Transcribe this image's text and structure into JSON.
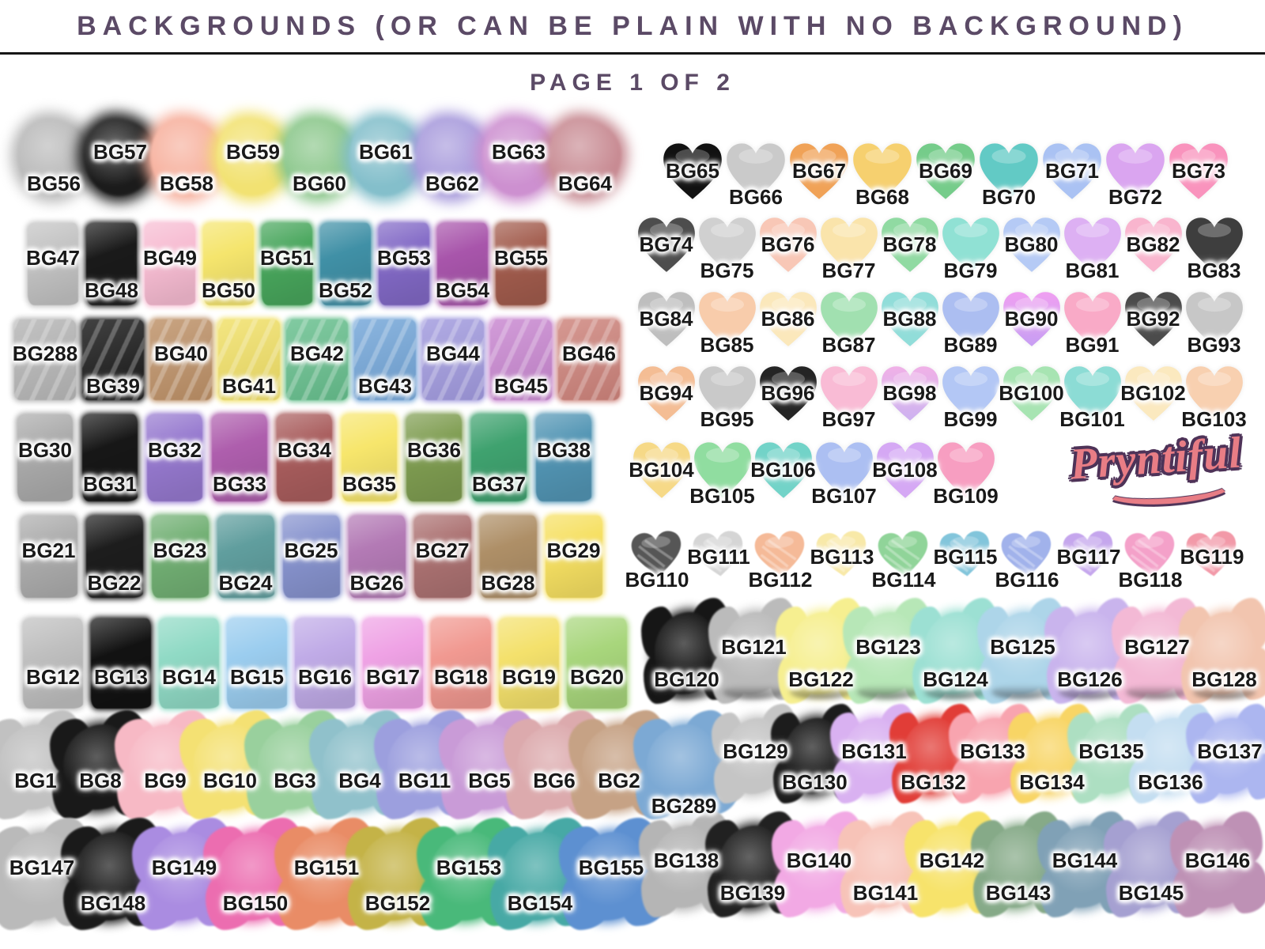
{
  "header": {
    "title": "BACKGROUNDS (OR CAN BE PLAIN WITH NO BACKGROUND)",
    "page_label": "PAGE 1 OF 2",
    "title_color": "#5b4a66"
  },
  "brand": {
    "name": "Pryntiful",
    "text_color": "#e87d85",
    "outline_color": "#4e3358"
  },
  "columns": {
    "left": {
      "rows": [
        {
          "name": "soft-blobs",
          "shape": "blob",
          "stagger": "du",
          "items": [
            {
              "id": "BG56",
              "color": "#b9b9b9"
            },
            {
              "id": "BG57",
              "color": "#1b1b1b"
            },
            {
              "id": "BG58",
              "color": "#f7b19e"
            },
            {
              "id": "BG59",
              "color": "#f2e272"
            },
            {
              "id": "BG60",
              "color": "#8bc78b"
            },
            {
              "id": "BG61",
              "color": "#84bfcb"
            },
            {
              "id": "BG62",
              "color": "#a89bdc"
            },
            {
              "id": "BG63",
              "color": "#cd90d0"
            },
            {
              "id": "BG64",
              "color": "#c88b93"
            }
          ]
        },
        {
          "name": "rect-row-47",
          "shape": "rect",
          "stagger": "ud",
          "items": [
            {
              "id": "BG47",
              "color": "#c3c3c3"
            },
            {
              "id": "BG48",
              "color": "#1a1a1a"
            },
            {
              "id": "BG49",
              "color": "#f7bcd2"
            },
            {
              "id": "BG50",
              "color": "#f5e56d"
            },
            {
              "id": "BG51",
              "color": "#48a65c"
            },
            {
              "id": "BG52",
              "color": "#4090a6"
            },
            {
              "id": "BG53",
              "color": "#8269c6"
            },
            {
              "id": "BG54",
              "color": "#a855ab"
            },
            {
              "id": "BG55",
              "color": "#a25c4d"
            }
          ]
        },
        {
          "name": "brush-row-39",
          "shape": "brush",
          "stagger": "ud",
          "items": [
            {
              "id": "BG288",
              "color": "#b5b5b5"
            },
            {
              "id": "BG39",
              "color": "#181818"
            },
            {
              "id": "BG40",
              "color": "#bd9066"
            },
            {
              "id": "BG41",
              "color": "#f1e066"
            },
            {
              "id": "BG42",
              "color": "#66bf8d"
            },
            {
              "id": "BG43",
              "color": "#72a5d8"
            },
            {
              "id": "BG44",
              "color": "#a099de"
            },
            {
              "id": "BG45",
              "color": "#c886d0"
            },
            {
              "id": "BG46",
              "color": "#cd827a"
            }
          ]
        },
        {
          "name": "rect-row-30",
          "shape": "rect",
          "stagger": "ud",
          "items": [
            {
              "id": "BG30",
              "color": "#ababab"
            },
            {
              "id": "BG31",
              "color": "#171717"
            },
            {
              "id": "BG32",
              "color": "#9679cf"
            },
            {
              "id": "BG33",
              "color": "#ae5ead"
            },
            {
              "id": "BG34",
              "color": "#a95d5d"
            },
            {
              "id": "BG35",
              "color": "#f7e66c"
            },
            {
              "id": "BG36",
              "color": "#7f9d51"
            },
            {
              "id": "BG37",
              "color": "#3fa26f"
            },
            {
              "id": "BG38",
              "color": "#5295b4"
            }
          ]
        },
        {
          "name": "rect-row-21",
          "shape": "rect",
          "stagger": "ud",
          "items": [
            {
              "id": "BG21",
              "color": "#adadad"
            },
            {
              "id": "BG22",
              "color": "#1d1d1d"
            },
            {
              "id": "BG23",
              "color": "#72b074"
            },
            {
              "id": "BG24",
              "color": "#609e9e"
            },
            {
              "id": "BG25",
              "color": "#8793ce"
            },
            {
              "id": "BG26",
              "color": "#b37ab5"
            },
            {
              "id": "BG27",
              "color": "#ac7272"
            },
            {
              "id": "BG28",
              "color": "#ae8f67"
            },
            {
              "id": "BG29",
              "color": "#f6e062"
            }
          ]
        },
        {
          "name": "rect-row-12",
          "shape": "rect",
          "stagger": "mid",
          "items": [
            {
              "id": "BG12",
              "color": "#bfbfbf"
            },
            {
              "id": "BG13",
              "color": "#121212"
            },
            {
              "id": "BG14",
              "color": "#90dac5"
            },
            {
              "id": "BG15",
              "color": "#9bcdef"
            },
            {
              "id": "BG16",
              "color": "#c0abe7"
            },
            {
              "id": "BG17",
              "color": "#efa2e5"
            },
            {
              "id": "BG18",
              "color": "#f19991"
            },
            {
              "id": "BG19",
              "color": "#f4e16c"
            },
            {
              "id": "BG20",
              "color": "#a8d67c"
            }
          ]
        },
        {
          "name": "splat-row-1",
          "shape": "splat",
          "stagger": "mid",
          "items": [
            {
              "id": "BG1",
              "color": "#c1c1c1"
            },
            {
              "id": "BG8",
              "color": "#191919"
            },
            {
              "id": "BG9",
              "color": "#f7b9c5"
            },
            {
              "id": "BG10",
              "color": "#f4e173"
            },
            {
              "id": "BG3",
              "color": "#99d09d"
            },
            {
              "id": "BG4",
              "color": "#90c1cb"
            },
            {
              "id": "BG11",
              "color": "#9c9fde"
            },
            {
              "id": "BG5",
              "color": "#c99bd7"
            },
            {
              "id": "BG6",
              "color": "#dcaaad"
            },
            {
              "id": "BG2",
              "color": "#c6a285"
            },
            {
              "id": "BG289",
              "color": "#7ca9d4",
              "pos": "low"
            }
          ]
        },
        {
          "name": "splat-row-147",
          "shape": "splat",
          "stagger": "ud",
          "items": [
            {
              "id": "BG147",
              "color": "#bababa"
            },
            {
              "id": "BG148",
              "color": "#1a1a1a"
            },
            {
              "id": "BG149",
              "color": "#aa8ce1"
            },
            {
              "id": "BG150",
              "color": "#ec6db0"
            },
            {
              "id": "BG151",
              "color": "#e98c66"
            },
            {
              "id": "BG152",
              "color": "#c4b347"
            },
            {
              "id": "BG153",
              "color": "#49b97a"
            },
            {
              "id": "BG154",
              "color": "#47a9a5"
            },
            {
              "id": "BG155",
              "color": "#5d90d1"
            }
          ]
        }
      ]
    },
    "right": {
      "rows": [
        {
          "name": "hearts-row-65",
          "shape": "heart",
          "stagger": "ud",
          "items": [
            {
              "id": "BG65",
              "color": "#111111"
            },
            {
              "id": "BG66",
              "color": "#cacaca"
            },
            {
              "id": "BG67",
              "color": "#f0a257"
            },
            {
              "id": "BG68",
              "color": "#f6d06f"
            },
            {
              "id": "BG69",
              "color": "#75cc8a"
            },
            {
              "id": "BG70",
              "color": "#62cac5"
            },
            {
              "id": "BG71",
              "color": "#aac2f3"
            },
            {
              "id": "BG72",
              "color": "#daa5f0"
            },
            {
              "id": "BG73",
              "color": "#f993bd"
            }
          ]
        },
        {
          "name": "hearts-row-74",
          "shape": "heart",
          "stagger": "ud",
          "items": [
            {
              "id": "BG74",
              "color": "#4d4d4d"
            },
            {
              "id": "BG75",
              "color": "#d0d0d0"
            },
            {
              "id": "BG76",
              "color": "#f8c7b6"
            },
            {
              "id": "BG77",
              "color": "#fae4ab"
            },
            {
              "id": "BG78",
              "color": "#90daa2"
            },
            {
              "id": "BG79",
              "color": "#90e1d4"
            },
            {
              "id": "BG80",
              "color": "#b5caf5"
            },
            {
              "id": "BG81",
              "color": "#ddb0f3"
            },
            {
              "id": "BG82",
              "color": "#f9b5ce"
            },
            {
              "id": "BG83",
              "color": "#3e3e3e"
            }
          ]
        },
        {
          "name": "hearts-row-84",
          "shape": "heart",
          "stagger": "ud",
          "items": [
            {
              "id": "BG84",
              "color": "#bebebe"
            },
            {
              "id": "BG85",
              "color": "#f8ccab"
            },
            {
              "id": "BG86",
              "color": "#fbe8bb"
            },
            {
              "id": "BG87",
              "color": "#a1e0b0"
            },
            {
              "id": "BG88",
              "color": "#91ddd9"
            },
            {
              "id": "BG89",
              "color": "#acbef1"
            },
            {
              "id": "BG90",
              "color": "#ef9ff1",
              "color2": "#c79ef3"
            },
            {
              "id": "BG91",
              "color": "#f9aac7"
            },
            {
              "id": "BG92",
              "color": "#4b4b4b"
            },
            {
              "id": "BG93",
              "color": "#c7c7c7"
            }
          ]
        },
        {
          "name": "hearts-row-94",
          "shape": "heart",
          "stagger": "ud",
          "items": [
            {
              "id": "BG94",
              "color": "#f4bd94"
            },
            {
              "id": "BG95",
              "color": "#c9c9c9"
            },
            {
              "id": "BG96",
              "color": "#242424"
            },
            {
              "id": "BG97",
              "color": "#f9bbd5"
            },
            {
              "id": "BG98",
              "color": "#f0b1e7",
              "color2": "#cdb2f0"
            },
            {
              "id": "BG99",
              "color": "#b3c7f5"
            },
            {
              "id": "BG100",
              "color": "#a7e4b2"
            },
            {
              "id": "BG101",
              "color": "#8cdcd5"
            },
            {
              "id": "BG102",
              "color": "#fbe9bf"
            },
            {
              "id": "BG103",
              "color": "#f8d0b0"
            }
          ]
        },
        {
          "name": "hearts-row-104",
          "shape": "heart",
          "stagger": "ud",
          "items": [
            {
              "id": "BG104",
              "color": "#f6d987"
            },
            {
              "id": "BG105",
              "color": "#90dda0"
            },
            {
              "id": "BG106",
              "color": "#72d3c8"
            },
            {
              "id": "BG107",
              "color": "#acbff2"
            },
            {
              "id": "BG108",
              "color": "#d5a8f4"
            },
            {
              "id": "BG109",
              "color": "#f79ec1"
            }
          ]
        },
        {
          "name": "sketch-hearts-row-110",
          "shape": "heart sketch",
          "stagger": "du",
          "items": [
            {
              "id": "BG110",
              "color": "#565656"
            },
            {
              "id": "BG111",
              "color": "#d5d5d5"
            },
            {
              "id": "BG112",
              "color": "#f5ba98"
            },
            {
              "id": "BG113",
              "color": "#f8e9a8"
            },
            {
              "id": "BG114",
              "color": "#90d499"
            },
            {
              "id": "BG115",
              "color": "#82c5db"
            },
            {
              "id": "BG116",
              "color": "#a1b2eb"
            },
            {
              "id": "BG117",
              "color": "#c5a6ed"
            },
            {
              "id": "BG118",
              "color": "#f4a1c9"
            },
            {
              "id": "BG119",
              "color": "#f299a8"
            }
          ]
        },
        {
          "name": "splatter-row-120",
          "shape": "splat smudge",
          "stagger": "du",
          "items": [
            {
              "id": "BG120",
              "color": "#161616"
            },
            {
              "id": "BG121",
              "color": "#bbbbbb"
            },
            {
              "id": "BG122",
              "color": "#f6ef90"
            },
            {
              "id": "BG123",
              "color": "#b7e7b7"
            },
            {
              "id": "BG124",
              "color": "#9ce0d3"
            },
            {
              "id": "BG125",
              "color": "#add5e9"
            },
            {
              "id": "BG126",
              "color": "#c9b4ed"
            },
            {
              "id": "BG127",
              "color": "#f3b9d5"
            },
            {
              "id": "BG128",
              "color": "#f2c5af"
            }
          ]
        },
        {
          "name": "splatter-row-129",
          "shape": "splat",
          "stagger": "ud",
          "items": [
            {
              "id": "BG129",
              "color": "#c5c5c5"
            },
            {
              "id": "BG130",
              "color": "#1c1c1c"
            },
            {
              "id": "BG131",
              "color": "#d9b1f1"
            },
            {
              "id": "BG132",
              "color": "#e13d37"
            },
            {
              "id": "BG133",
              "color": "#f8a4af"
            },
            {
              "id": "BG134",
              "color": "#f8d565"
            },
            {
              "id": "BG135",
              "color": "#addfc2"
            },
            {
              "id": "BG136",
              "color": "#c4def1"
            },
            {
              "id": "BG137",
              "color": "#acb6f0"
            }
          ]
        },
        {
          "name": "splatter-row-138",
          "shape": "splat",
          "stagger": "ud",
          "items": [
            {
              "id": "BG138",
              "color": "#b5b5b5"
            },
            {
              "id": "BG139",
              "color": "#212121"
            },
            {
              "id": "BG140",
              "color": "#f2a9e4"
            },
            {
              "id": "BG141",
              "color": "#f7c3b8"
            },
            {
              "id": "BG142",
              "color": "#f7e36b"
            },
            {
              "id": "BG143",
              "color": "#86aa88"
            },
            {
              "id": "BG144",
              "color": "#80a1b6"
            },
            {
              "id": "BG145",
              "color": "#a5a0d1"
            },
            {
              "id": "BG146",
              "color": "#be91b5"
            }
          ]
        }
      ]
    }
  }
}
